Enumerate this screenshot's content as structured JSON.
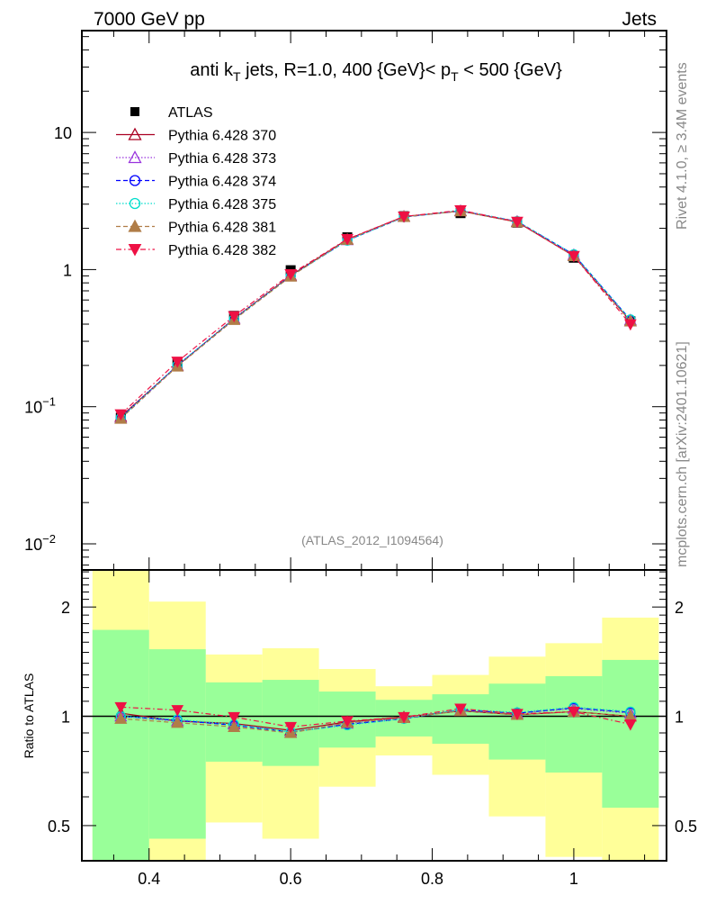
{
  "header": {
    "left": "7000 GeV pp",
    "right": "Jets"
  },
  "side_texts": {
    "rivet": "Rivet 4.1.0, ≥ 3.4M events",
    "mcplots": "mcplots.cern.ch [arXiv:2401.10621]"
  },
  "analysis_id": "(ATLAS_2012_I1094564)",
  "colors": {
    "band_yellow": "#ffff99",
    "band_green": "#99ff99"
  },
  "chart_data": {
    "type": "line",
    "title_parts": [
      {
        "t": "anti k"
      },
      {
        "t": "T",
        "sub": true
      },
      {
        "t": " jets, R=1.0,  400 {GeV}< p"
      },
      {
        "t": "T",
        "sub": true
      },
      {
        "t": " < 500 {GeV}"
      }
    ],
    "xlim": [
      0.305,
      1.131
    ],
    "x_ticks": [
      "0.4",
      "0.6",
      "0.8",
      "1"
    ],
    "x_tick_values": [
      0.4,
      0.6,
      0.8,
      1.0
    ],
    "main": {
      "yscale": "log",
      "ylim": [
        0.00645,
        55.3
      ],
      "y_ticks": [
        {
          "v": 10,
          "base": "10",
          "exp": ""
        },
        {
          "v": 1,
          "base": "1",
          "exp": ""
        },
        {
          "v": 0.1,
          "base": "10",
          "exp": "−1"
        },
        {
          "v": 0.01,
          "base": "10",
          "exp": "−2"
        }
      ]
    },
    "ratio": {
      "ylabel": "Ratio to ATLAS",
      "yscale": "log",
      "ylim": [
        0.4,
        2.53
      ],
      "y_ticks": [
        {
          "v": 2,
          "label": "2"
        },
        {
          "v": 1,
          "label": "1"
        },
        {
          "v": 0.5,
          "label": "0.5"
        }
      ],
      "bin_edges": [
        0.32,
        0.4,
        0.48,
        0.56,
        0.64,
        0.72,
        0.8,
        0.88,
        0.96,
        1.04,
        1.12
      ],
      "band_green": {
        "lo": [
          0.3,
          0.46,
          0.75,
          0.73,
          0.82,
          0.88,
          0.84,
          0.76,
          0.7,
          0.56
        ],
        "hi": [
          1.73,
          1.53,
          1.24,
          1.26,
          1.17,
          1.11,
          1.15,
          1.23,
          1.29,
          1.43
        ]
      },
      "band_yellow": {
        "lo": [
          0.3,
          0.3,
          0.51,
          0.46,
          0.64,
          0.78,
          0.69,
          0.53,
          0.41,
          0.3
        ],
        "hi": [
          3.0,
          2.07,
          1.48,
          1.54,
          1.35,
          1.21,
          1.3,
          1.46,
          1.59,
          1.87
        ]
      }
    },
    "x": [
      0.36,
      0.44,
      0.52,
      0.6,
      0.68,
      0.76,
      0.84,
      0.92,
      1.0,
      1.08
    ],
    "reference": {
      "name": "ATLAS",
      "values": [
        0.083,
        0.205,
        0.46,
        0.99,
        1.72,
        2.45,
        2.58,
        2.2,
        1.22,
        0.42
      ],
      "color": "#000000",
      "marker": "square"
    },
    "series": [
      {
        "name": "Pythia 6.428 370",
        "color": "#aa0022",
        "marker": "triangle-up-open",
        "dash": "",
        "ratio": [
          1.02,
          0.97,
          0.955,
          0.915,
          0.965,
          0.995,
          1.035,
          1.01,
          1.03,
          1.0
        ]
      },
      {
        "name": "Pythia 6.428 373",
        "color": "#9933dd",
        "marker": "triangle-up-open",
        "dash": "1.5,2",
        "ratio": [
          1.0,
          0.97,
          0.95,
          0.905,
          0.955,
          0.99,
          1.04,
          1.02,
          1.05,
          1.02
        ]
      },
      {
        "name": "Pythia 6.428 374",
        "color": "#0000ff",
        "marker": "circle-open",
        "dash": "5,3",
        "ratio": [
          1.0,
          0.975,
          0.945,
          0.905,
          0.95,
          0.985,
          1.04,
          1.02,
          1.055,
          1.025
        ]
      },
      {
        "name": "Pythia 6.428 375",
        "color": "#00ddcc",
        "marker": "circle-open",
        "dash": "1.5,2",
        "ratio": [
          1.0,
          0.98,
          0.95,
          0.905,
          0.945,
          0.985,
          1.045,
          1.025,
          1.06,
          1.03
        ]
      },
      {
        "name": "Pythia 6.428 381",
        "color": "#b07d48",
        "marker": "triangle-up",
        "dash": "5,3",
        "ratio": [
          0.985,
          0.96,
          0.935,
          0.9,
          0.96,
          0.99,
          1.035,
          1.01,
          1.03,
          1.0
        ]
      },
      {
        "name": "Pythia 6.428 382",
        "color": "#ee1144",
        "marker": "triangle-down",
        "dash": "6,3,1.5,3",
        "ratio": [
          1.06,
          1.04,
          0.995,
          0.935,
          0.97,
          0.995,
          1.05,
          1.015,
          1.03,
          0.95
        ]
      }
    ]
  }
}
